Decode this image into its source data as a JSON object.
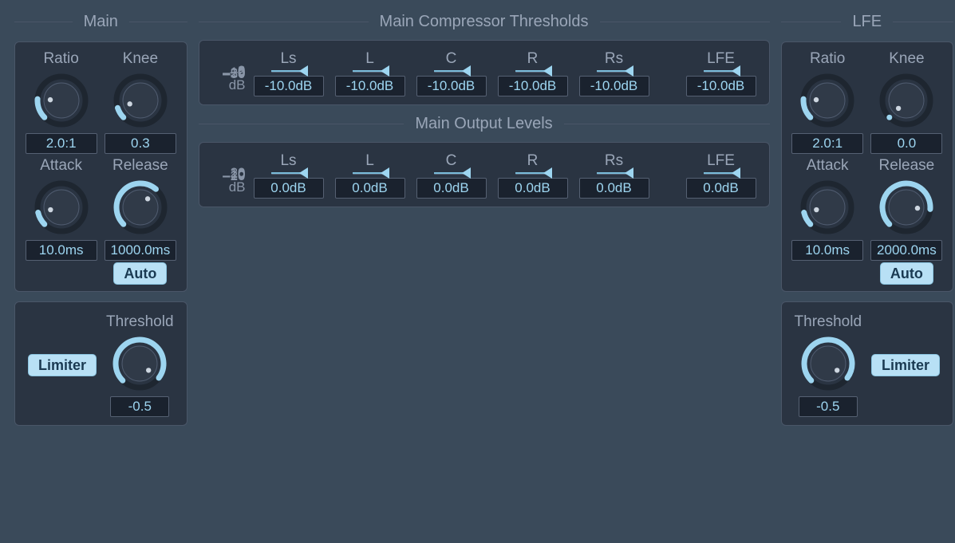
{
  "colors": {
    "background": "#3a4a5a",
    "panel": "#2a3442",
    "panel_border": "#4a5668",
    "panel_dark": "#212a36",
    "text_muted": "#8a96a8",
    "accent": "#9dd5f0",
    "accent_line": "#7abcda",
    "value_bg": "#1a222e",
    "value_border": "#556072",
    "btn_on_bg": "#b8e0f5",
    "btn_on_text": "#1a3a52"
  },
  "main": {
    "section_label": "Main",
    "ratio": {
      "label": "Ratio",
      "value": "2.0:1",
      "norm": 0.18
    },
    "knee": {
      "label": "Knee",
      "value": "0.3",
      "norm": 0.1
    },
    "attack": {
      "label": "Attack",
      "value": "10.0ms",
      "norm": 0.12
    },
    "release": {
      "label": "Release",
      "value": "1000.0ms",
      "norm": 0.65,
      "auto_label": "Auto",
      "auto_on": true
    },
    "limiter": {
      "threshold_label": "Threshold",
      "threshold_value": "-0.5",
      "threshold_norm": 0.97,
      "limiter_label": "Limiter",
      "limiter_on": true
    }
  },
  "lfe": {
    "section_label": "LFE",
    "ratio": {
      "label": "Ratio",
      "value": "2.0:1",
      "norm": 0.18
    },
    "knee": {
      "label": "Knee",
      "value": "0.0",
      "norm": 0.0
    },
    "attack": {
      "label": "Attack",
      "value": "10.0ms",
      "norm": 0.12
    },
    "release": {
      "label": "Release",
      "value": "2000.0ms",
      "norm": 0.85,
      "auto_label": "Auto",
      "auto_on": true
    },
    "limiter": {
      "threshold_label": "Threshold",
      "threshold_value": "-0.5",
      "threshold_norm": 0.97,
      "limiter_label": "Limiter",
      "limiter_on": true
    }
  },
  "thresholds": {
    "section_label": "Main Compressor Thresholds",
    "unit_label": "dB",
    "scale": {
      "ticks": [
        0,
        -2,
        -5,
        -10,
        -20,
        -35,
        -50
      ]
    },
    "channels": [
      {
        "label": "Ls",
        "value": "-10.0dB",
        "db": -10
      },
      {
        "label": "L",
        "value": "-10.0dB",
        "db": -10
      },
      {
        "label": "C",
        "value": "-10.0dB",
        "db": -10
      },
      {
        "label": "R",
        "value": "-10.0dB",
        "db": -10
      },
      {
        "label": "Rs",
        "value": "-10.0dB",
        "db": -10
      }
    ],
    "lfe": {
      "label": "LFE",
      "value": "-10.0dB",
      "db": -10
    }
  },
  "output": {
    "section_label": "Main Output Levels",
    "unit_label": "dB",
    "scale": {
      "ticks": [
        20,
        10,
        0,
        -10,
        -20
      ]
    },
    "channels": [
      {
        "label": "Ls",
        "value": "0.0dB",
        "db": 0
      },
      {
        "label": "L",
        "value": "0.0dB",
        "db": 0
      },
      {
        "label": "C",
        "value": "0.0dB",
        "db": 0
      },
      {
        "label": "R",
        "value": "0.0dB",
        "db": 0
      },
      {
        "label": "Rs",
        "value": "0.0dB",
        "db": 0
      }
    ],
    "lfe": {
      "label": "LFE",
      "value": "0.0dB",
      "db": 0
    }
  }
}
